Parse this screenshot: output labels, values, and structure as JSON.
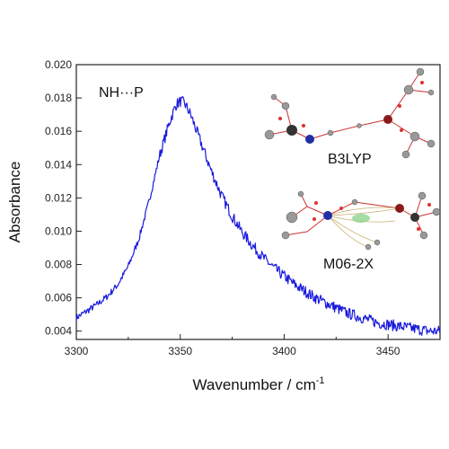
{
  "chart_data": {
    "type": "line",
    "xlabel": "Wavenumber / cm",
    "xlabel_sup": "-1",
    "ylabel": "Absorbance",
    "xlim": [
      3300,
      3475
    ],
    "ylim": [
      0.0035,
      0.02
    ],
    "xticks": [
      3300,
      3350,
      3400,
      3450
    ],
    "yticks": [
      0.004,
      0.006,
      0.008,
      0.01,
      0.012,
      0.014,
      0.016,
      0.018,
      0.02
    ],
    "ytick_labels": [
      "0.004",
      "0.006",
      "0.008",
      "0.010",
      "0.012",
      "0.014",
      "0.016",
      "0.018",
      "0.020"
    ],
    "grid": false,
    "series": [
      {
        "color": "#1a1adc",
        "x": [
          3300,
          3305,
          3310,
          3315,
          3320,
          3325,
          3330,
          3335,
          3340,
          3345,
          3348,
          3350,
          3352,
          3355,
          3360,
          3365,
          3370,
          3375,
          3380,
          3385,
          3390,
          3395,
          3400,
          3405,
          3410,
          3415,
          3420,
          3425,
          3430,
          3435,
          3440,
          3445,
          3450,
          3455,
          3460,
          3465,
          3470,
          3475
        ],
        "y": [
          0.0048,
          0.0052,
          0.0056,
          0.0061,
          0.0068,
          0.0079,
          0.0095,
          0.0118,
          0.0145,
          0.0166,
          0.0176,
          0.0178,
          0.0177,
          0.017,
          0.0153,
          0.0136,
          0.0121,
          0.0109,
          0.0099,
          0.0091,
          0.0084,
          0.0078,
          0.0073,
          0.0068,
          0.0064,
          0.006,
          0.0057,
          0.0054,
          0.0051,
          0.0049,
          0.0047,
          0.0045,
          0.0044,
          0.0043,
          0.0042,
          0.0041,
          0.004,
          0.004
        ]
      }
    ],
    "annotations": {
      "species": "NH···P",
      "method_top": "B3LYP",
      "method_bottom": "M06-2X"
    }
  }
}
